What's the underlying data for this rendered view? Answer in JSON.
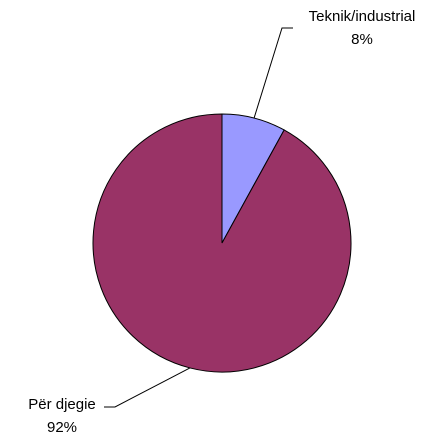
{
  "chart_data": {
    "type": "pie",
    "categories": [
      "Teknik/industrial",
      "Për djegie"
    ],
    "values": [
      8,
      92
    ],
    "value_labels": [
      "8%",
      "92%"
    ],
    "colors": [
      "#9999ff",
      "#993366"
    ]
  }
}
